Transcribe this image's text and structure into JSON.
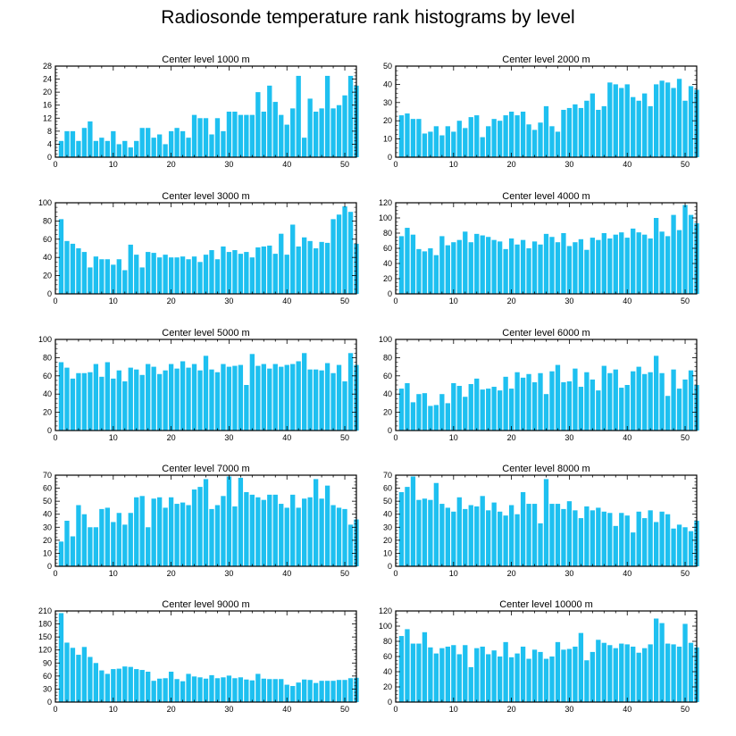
{
  "figure": {
    "title": "Radiosonde temperature rank histograms by level",
    "bar_color": "#1ec0f0"
  },
  "chart_data": [
    {
      "type": "bar",
      "title": "Center level 1000 m",
      "xlim": [
        0,
        52
      ],
      "ylim": [
        0,
        28
      ],
      "x_ticks": [
        0,
        10,
        20,
        30,
        40,
        50
      ],
      "y_ticks": [
        0,
        4,
        8,
        12,
        16,
        20,
        24,
        28
      ],
      "values": [
        5,
        8,
        8,
        5,
        9,
        11,
        5,
        6,
        5,
        8,
        4,
        5,
        3,
        5,
        9,
        9,
        6,
        7,
        4,
        8,
        9,
        8,
        6,
        13,
        12,
        12,
        7,
        12,
        8,
        14,
        14,
        13,
        13,
        13,
        20,
        14,
        22,
        17,
        13,
        10,
        15,
        25,
        6,
        18,
        14,
        15,
        25,
        15,
        16,
        19,
        25,
        22
      ]
    },
    {
      "type": "bar",
      "title": "Center level 2000 m",
      "xlim": [
        0,
        52
      ],
      "ylim": [
        0,
        50
      ],
      "x_ticks": [
        0,
        10,
        20,
        30,
        40,
        50
      ],
      "y_ticks": [
        0,
        10,
        20,
        30,
        40,
        50
      ],
      "values": [
        23,
        24,
        21,
        21,
        13,
        14,
        17,
        12,
        17,
        14,
        20,
        16,
        22,
        23,
        11,
        17,
        21,
        20,
        23,
        25,
        23,
        25,
        18,
        15,
        19,
        28,
        17,
        14,
        26,
        27,
        29,
        27,
        31,
        35,
        26,
        28,
        41,
        40,
        38,
        40,
        33,
        31,
        35,
        28,
        40,
        42,
        41,
        38,
        43,
        31,
        39,
        37
      ]
    },
    {
      "type": "bar",
      "title": "Center level 3000 m",
      "xlim": [
        0,
        52
      ],
      "ylim": [
        0,
        100
      ],
      "x_ticks": [
        0,
        10,
        20,
        30,
        40,
        50
      ],
      "y_ticks": [
        0,
        20,
        40,
        60,
        80,
        100
      ],
      "values": [
        82,
        58,
        55,
        50,
        46,
        29,
        41,
        38,
        38,
        32,
        38,
        26,
        54,
        43,
        29,
        46,
        45,
        40,
        43,
        40,
        40,
        41,
        38,
        41,
        35,
        43,
        48,
        38,
        52,
        46,
        48,
        44,
        46,
        40,
        51,
        52,
        53,
        44,
        66,
        43,
        76,
        52,
        62,
        58,
        50,
        57,
        56,
        82,
        87,
        96,
        90,
        55
      ]
    },
    {
      "type": "bar",
      "title": "Center level 4000 m",
      "xlim": [
        0,
        52
      ],
      "ylim": [
        0,
        120
      ],
      "x_ticks": [
        0,
        10,
        20,
        30,
        40,
        50
      ],
      "y_ticks": [
        0,
        20,
        40,
        60,
        80,
        100,
        120
      ],
      "values": [
        76,
        87,
        78,
        59,
        56,
        60,
        51,
        76,
        64,
        68,
        71,
        82,
        68,
        79,
        77,
        75,
        71,
        69,
        59,
        73,
        65,
        71,
        60,
        69,
        65,
        79,
        75,
        68,
        80,
        63,
        68,
        72,
        58,
        74,
        71,
        80,
        73,
        78,
        81,
        74,
        86,
        81,
        78,
        73,
        100,
        82,
        76,
        104,
        84,
        117,
        104,
        93
      ]
    },
    {
      "type": "bar",
      "title": "Center level 5000 m",
      "xlim": [
        0,
        52
      ],
      "ylim": [
        0,
        100
      ],
      "x_ticks": [
        0,
        10,
        20,
        30,
        40,
        50
      ],
      "y_ticks": [
        0,
        20,
        40,
        60,
        80,
        100
      ],
      "values": [
        75,
        69,
        57,
        63,
        63,
        64,
        73,
        59,
        75,
        57,
        66,
        54,
        69,
        67,
        61,
        73,
        70,
        62,
        66,
        73,
        68,
        76,
        69,
        73,
        66,
        82,
        67,
        64,
        73,
        70,
        71,
        72,
        50,
        84,
        71,
        73,
        68,
        73,
        70,
        72,
        73,
        76,
        85,
        67,
        67,
        66,
        74,
        63,
        72,
        54,
        85,
        72
      ]
    },
    {
      "type": "bar",
      "title": "Center level 6000 m",
      "xlim": [
        0,
        52
      ],
      "ylim": [
        0,
        100
      ],
      "x_ticks": [
        0,
        10,
        20,
        30,
        40,
        50
      ],
      "y_ticks": [
        0,
        20,
        40,
        60,
        80,
        100
      ],
      "values": [
        46,
        52,
        31,
        40,
        41,
        27,
        28,
        40,
        30,
        52,
        49,
        37,
        51,
        57,
        45,
        46,
        48,
        44,
        59,
        46,
        64,
        58,
        62,
        53,
        63,
        40,
        65,
        72,
        53,
        54,
        68,
        48,
        64,
        56,
        44,
        71,
        63,
        67,
        47,
        50,
        65,
        70,
        62,
        64,
        82,
        63,
        38,
        67,
        46,
        56,
        66,
        50
      ]
    },
    {
      "type": "bar",
      "title": "Center level 7000 m",
      "xlim": [
        0,
        52
      ],
      "ylim": [
        0,
        70
      ],
      "x_ticks": [
        0,
        10,
        20,
        30,
        40,
        50
      ],
      "y_ticks": [
        0,
        10,
        20,
        30,
        40,
        50,
        60,
        70
      ],
      "values": [
        19,
        35,
        23,
        47,
        40,
        30,
        30,
        44,
        45,
        34,
        41,
        32,
        41,
        53,
        54,
        30,
        52,
        53,
        45,
        53,
        48,
        49,
        47,
        59,
        61,
        67,
        44,
        47,
        54,
        69,
        46,
        68,
        57,
        55,
        53,
        51,
        55,
        55,
        48,
        45,
        55,
        45,
        52,
        53,
        67,
        52,
        62,
        47,
        45,
        44,
        32,
        36
      ]
    },
    {
      "type": "bar",
      "title": "Center level 8000 m",
      "xlim": [
        0,
        52
      ],
      "ylim": [
        0,
        70
      ],
      "x_ticks": [
        0,
        10,
        20,
        30,
        40,
        50
      ],
      "y_ticks": [
        0,
        10,
        20,
        30,
        40,
        50,
        60,
        70
      ],
      "values": [
        57,
        61,
        69,
        51,
        52,
        51,
        64,
        48,
        45,
        42,
        53,
        44,
        47,
        46,
        54,
        43,
        49,
        42,
        39,
        47,
        40,
        57,
        48,
        48,
        33,
        67,
        48,
        48,
        44,
        50,
        43,
        37,
        46,
        43,
        45,
        42,
        41,
        31,
        41,
        39,
        26,
        42,
        37,
        43,
        34,
        42,
        40,
        29,
        32,
        30,
        27,
        35
      ]
    },
    {
      "type": "bar",
      "title": "Center level 9000 m",
      "xlim": [
        0,
        52
      ],
      "ylim": [
        0,
        210
      ],
      "x_ticks": [
        0,
        10,
        20,
        30,
        40,
        50
      ],
      "y_ticks": [
        0,
        30,
        60,
        90,
        120,
        150,
        180,
        210
      ],
      "values": [
        205,
        137,
        125,
        109,
        127,
        104,
        90,
        73,
        65,
        76,
        77,
        82,
        81,
        76,
        74,
        70,
        49,
        54,
        55,
        70,
        53,
        48,
        65,
        59,
        57,
        54,
        62,
        55,
        57,
        61,
        55,
        57,
        52,
        50,
        65,
        54,
        53,
        53,
        53,
        40,
        37,
        45,
        52,
        51,
        44,
        49,
        49,
        49,
        51,
        51,
        55,
        56
      ]
    },
    {
      "type": "bar",
      "title": "Center level 10000 m",
      "xlim": [
        0,
        52
      ],
      "ylim": [
        0,
        120
      ],
      "x_ticks": [
        0,
        10,
        20,
        30,
        40,
        50
      ],
      "y_ticks": [
        0,
        20,
        40,
        60,
        80,
        100,
        120
      ],
      "values": [
        87,
        96,
        77,
        77,
        92,
        72,
        64,
        71,
        73,
        75,
        63,
        75,
        46,
        71,
        73,
        63,
        68,
        60,
        79,
        59,
        64,
        73,
        57,
        69,
        66,
        57,
        60,
        79,
        69,
        70,
        73,
        91,
        55,
        66,
        82,
        78,
        75,
        71,
        77,
        76,
        73,
        65,
        71,
        76,
        110,
        104,
        77,
        76,
        73,
        103,
        78,
        72
      ]
    }
  ]
}
